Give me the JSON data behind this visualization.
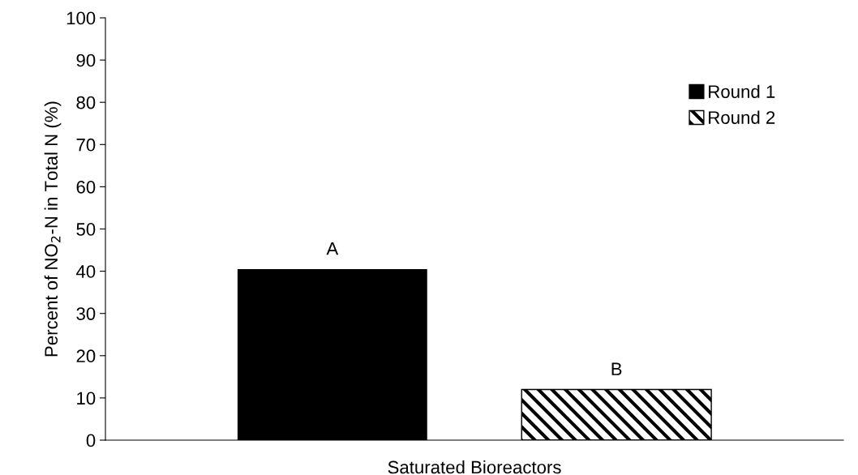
{
  "chart_data": {
    "type": "bar",
    "categories": [
      "Saturated Bioreactors"
    ],
    "ylabel": "Percent of NO$_{2}$-N in Total N (%)",
    "series": [
      {
        "name": "Round 1",
        "color": "#000000",
        "values": [
          40.5
        ]
      },
      {
        "name": "Round 2",
        "color": "#000000",
        "values": [
          12
        ]
      }
    ],
    "annotations": [
      "A",
      "B"
    ],
    "ylim": [
      0,
      100
    ],
    "yticks": [
      0,
      10,
      20,
      30,
      40,
      50,
      60,
      70,
      80,
      90,
      100
    ],
    "grid": false,
    "legend": "top right"
  }
}
